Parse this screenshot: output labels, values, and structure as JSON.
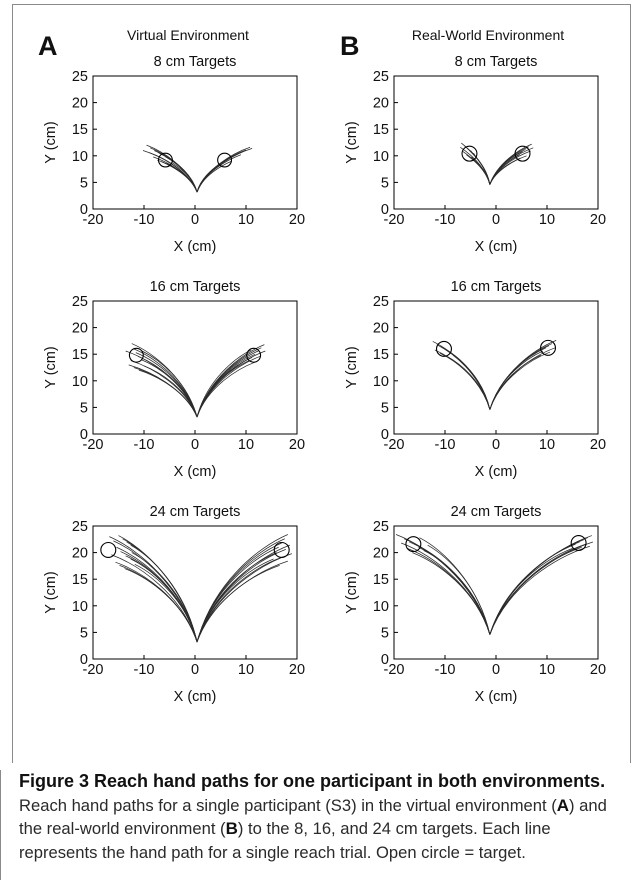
{
  "columns": [
    {
      "letter": "A",
      "title": "Virtual Environment"
    },
    {
      "letter": "B",
      "title": "Real-World Environment"
    }
  ],
  "caption": {
    "title": "Figure 3 Reach hand paths for one participant in both environments.",
    "body_parts": [
      "Reach hand paths for a single participant (S3) in the virtual environment (",
      "A",
      ") and the real-world environment (",
      "B",
      ") to the 8, 16, and 24 cm targets. Each line represents the hand path for a single reach trial. Open circle = target."
    ]
  },
  "colors": {
    "path": "#2b2b2b",
    "axis": "#000000",
    "text": "#111111",
    "frame": "#8a8a8a"
  },
  "chart_data": [
    {
      "type": "line",
      "panel": "A",
      "environment": "Virtual Environment",
      "title": "8 cm Targets",
      "xlabel": "X (cm)",
      "ylabel": "Y (cm)",
      "xlim": [
        -20,
        20
      ],
      "ylim": [
        0,
        25
      ],
      "xticks": [
        -20,
        -10,
        0,
        10,
        20
      ],
      "yticks": [
        0,
        5,
        10,
        15,
        20,
        25
      ],
      "grid": false,
      "start": [
        0.4,
        3.2
      ],
      "targets": [
        {
          "x": -5.8,
          "y": 9.2,
          "r": 1.3
        },
        {
          "x": 5.8,
          "y": 9.2,
          "r": 1.3
        }
      ],
      "left_endpoints": [
        [
          -9.5,
          12.0
        ],
        [
          -8.8,
          11.5
        ],
        [
          -8.0,
          11.0
        ],
        [
          -7.2,
          10.6
        ],
        [
          -6.4,
          10.2
        ],
        [
          -5.8,
          9.8
        ],
        [
          -5.0,
          9.5
        ],
        [
          -9.0,
          10.6
        ],
        [
          -8.2,
          9.8
        ],
        [
          -7.4,
          9.2
        ],
        [
          -6.6,
          8.9
        ],
        [
          -5.6,
          8.6
        ],
        [
          -10.2,
          11.0
        ],
        [
          -4.6,
          8.8
        ]
      ],
      "right_endpoints": [
        [
          10.8,
          11.6
        ],
        [
          10.0,
          11.1
        ],
        [
          9.2,
          10.7
        ],
        [
          8.4,
          10.3
        ],
        [
          7.6,
          10.0
        ],
        [
          6.8,
          9.6
        ],
        [
          6.2,
          9.2
        ],
        [
          5.5,
          8.8
        ],
        [
          4.8,
          8.5
        ],
        [
          7.2,
          9.0
        ],
        [
          9.0,
          10.2
        ],
        [
          11.2,
          11.4
        ]
      ]
    },
    {
      "type": "line",
      "panel": "B",
      "environment": "Real-World Environment",
      "title": "8 cm Targets",
      "xlabel": "X (cm)",
      "ylabel": "Y (cm)",
      "xlim": [
        -20,
        20
      ],
      "ylim": [
        0,
        25
      ],
      "xticks": [
        -20,
        -10,
        0,
        10,
        20
      ],
      "yticks": [
        0,
        5,
        10,
        15,
        20,
        25
      ],
      "grid": false,
      "start": [
        -1.2,
        4.6
      ],
      "targets": [
        {
          "x": -5.2,
          "y": 10.4,
          "r": 1.4
        },
        {
          "x": 5.2,
          "y": 10.4,
          "r": 1.4
        }
      ],
      "left_endpoints": [
        [
          -6.8,
          12.4
        ],
        [
          -6.2,
          11.9
        ],
        [
          -5.6,
          11.4
        ],
        [
          -5.0,
          11.0
        ],
        [
          -4.4,
          10.5
        ],
        [
          -6.5,
          10.8
        ],
        [
          -5.8,
          10.2
        ],
        [
          -4.8,
          9.8
        ],
        [
          -7.0,
          11.6
        ]
      ],
      "right_endpoints": [
        [
          7.0,
          12.2
        ],
        [
          6.4,
          11.7
        ],
        [
          5.8,
          11.2
        ],
        [
          5.2,
          10.8
        ],
        [
          4.6,
          10.2
        ],
        [
          6.8,
          10.9
        ],
        [
          6.0,
          10.0
        ],
        [
          4.8,
          9.6
        ],
        [
          7.3,
          11.5
        ]
      ]
    },
    {
      "type": "line",
      "panel": "A",
      "environment": "Virtual Environment",
      "title": "16 cm Targets",
      "xlabel": "X (cm)",
      "ylabel": "Y (cm)",
      "xlim": [
        -20,
        20
      ],
      "ylim": [
        0,
        25
      ],
      "xticks": [
        -20,
        -10,
        0,
        10,
        20
      ],
      "yticks": [
        0,
        5,
        10,
        15,
        20,
        25
      ],
      "grid": false,
      "start": [
        0.4,
        3.2
      ],
      "targets": [
        {
          "x": -11.5,
          "y": 14.8,
          "r": 1.3
        },
        {
          "x": 11.5,
          "y": 14.8,
          "r": 1.3
        }
      ],
      "left_endpoints": [
        [
          -12.4,
          17.0
        ],
        [
          -12.0,
          16.0
        ],
        [
          -11.6,
          15.3
        ],
        [
          -11.2,
          14.6
        ],
        [
          -10.6,
          14.0
        ],
        [
          -12.6,
          13.8
        ],
        [
          -13.0,
          13.0
        ],
        [
          -12.0,
          12.5
        ],
        [
          -11.0,
          12.0
        ],
        [
          -10.0,
          12.8
        ],
        [
          -13.6,
          15.6
        ],
        [
          -10.4,
          15.6
        ]
      ],
      "right_endpoints": [
        [
          13.6,
          16.8
        ],
        [
          13.0,
          16.2
        ],
        [
          12.4,
          15.6
        ],
        [
          11.8,
          15.0
        ],
        [
          11.2,
          14.4
        ],
        [
          10.6,
          13.8
        ],
        [
          12.0,
          13.6
        ],
        [
          12.8,
          14.6
        ],
        [
          13.8,
          15.6
        ],
        [
          11.0,
          15.8
        ]
      ]
    },
    {
      "type": "line",
      "panel": "B",
      "environment": "Real-World Environment",
      "title": "16 cm Targets",
      "xlabel": "X (cm)",
      "ylabel": "Y (cm)",
      "xlim": [
        -20,
        20
      ],
      "ylim": [
        0,
        25
      ],
      "xticks": [
        -20,
        -10,
        0,
        10,
        20
      ],
      "yticks": [
        0,
        5,
        10,
        15,
        20,
        25
      ],
      "grid": false,
      "start": [
        -1.2,
        4.6
      ],
      "targets": [
        {
          "x": -10.2,
          "y": 16.0,
          "r": 1.4
        },
        {
          "x": 10.2,
          "y": 16.2,
          "r": 1.4
        }
      ],
      "left_endpoints": [
        [
          -12.4,
          17.4
        ],
        [
          -11.6,
          16.8
        ],
        [
          -10.8,
          16.4
        ],
        [
          -10.0,
          16.0
        ],
        [
          -9.2,
          15.5
        ],
        [
          -11.0,
          15.2
        ],
        [
          -12.0,
          15.8
        ],
        [
          -9.6,
          14.6
        ],
        [
          -8.4,
          14.8
        ]
      ],
      "right_endpoints": [
        [
          11.8,
          17.6
        ],
        [
          11.0,
          17.0
        ],
        [
          10.4,
          16.6
        ],
        [
          9.8,
          16.2
        ],
        [
          9.2,
          15.6
        ],
        [
          10.6,
          15.4
        ],
        [
          11.6,
          16.2
        ],
        [
          8.8,
          14.8
        ]
      ]
    },
    {
      "type": "line",
      "panel": "A",
      "environment": "Virtual Environment",
      "title": "24 cm Targets",
      "xlabel": "X (cm)",
      "ylabel": "Y (cm)",
      "xlim": [
        -20,
        20
      ],
      "ylim": [
        0,
        25
      ],
      "xticks": [
        -20,
        -10,
        0,
        10,
        20
      ],
      "yticks": [
        0,
        5,
        10,
        15,
        20,
        25
      ],
      "grid": false,
      "start": [
        0.4,
        3.2
      ],
      "targets": [
        {
          "x": -17.0,
          "y": 20.5,
          "r": 1.4
        },
        {
          "x": 17.0,
          "y": 20.5,
          "r": 1.4
        }
      ],
      "left_endpoints": [
        [
          -15.0,
          23.2
        ],
        [
          -14.2,
          22.6
        ],
        [
          -13.4,
          22.0
        ],
        [
          -12.6,
          21.4
        ],
        [
          -16.0,
          22.2
        ],
        [
          -15.4,
          21.0
        ],
        [
          -14.6,
          20.2
        ],
        [
          -13.6,
          19.4
        ],
        [
          -12.6,
          18.8
        ],
        [
          -16.4,
          19.6
        ],
        [
          -15.6,
          18.2
        ],
        [
          -14.8,
          17.6
        ],
        [
          -13.8,
          17.0
        ],
        [
          -12.4,
          20.0
        ],
        [
          -11.8,
          17.8
        ],
        [
          -16.8,
          23.0
        ]
      ],
      "right_endpoints": [
        [
          18.2,
          23.4
        ],
        [
          17.6,
          22.6
        ],
        [
          17.0,
          21.8
        ],
        [
          16.4,
          21.0
        ],
        [
          17.8,
          20.6
        ],
        [
          18.6,
          21.4
        ],
        [
          16.0,
          20.0
        ],
        [
          17.2,
          19.2
        ],
        [
          18.2,
          18.4
        ],
        [
          16.6,
          17.6
        ],
        [
          15.4,
          18.8
        ],
        [
          19.0,
          19.8
        ]
      ]
    },
    {
      "type": "line",
      "panel": "B",
      "environment": "Real-World Environment",
      "title": "24 cm Targets",
      "xlabel": "X (cm)",
      "ylabel": "Y (cm)",
      "xlim": [
        -20,
        20
      ],
      "ylim": [
        0,
        25
      ],
      "xticks": [
        -20,
        -10,
        0,
        10,
        20
      ],
      "yticks": [
        0,
        5,
        10,
        15,
        20,
        25
      ],
      "grid": false,
      "start": [
        -1.2,
        4.6
      ],
      "targets": [
        {
          "x": -16.2,
          "y": 21.6,
          "r": 1.4
        },
        {
          "x": 16.2,
          "y": 21.8,
          "r": 1.4
        }
      ],
      "left_endpoints": [
        [
          -19.6,
          23.4
        ],
        [
          -18.0,
          22.6
        ],
        [
          -17.0,
          22.0
        ],
        [
          -16.0,
          21.6
        ],
        [
          -15.2,
          21.0
        ],
        [
          -14.2,
          20.4
        ],
        [
          -17.4,
          20.8
        ],
        [
          -16.4,
          20.0
        ],
        [
          -18.6,
          21.8
        ],
        [
          -15.0,
          22.8
        ],
        [
          -13.4,
          21.4
        ]
      ],
      "right_endpoints": [
        [
          18.8,
          23.2
        ],
        [
          18.0,
          22.8
        ],
        [
          17.2,
          22.4
        ],
        [
          16.4,
          22.0
        ],
        [
          15.6,
          21.6
        ],
        [
          16.8,
          21.0
        ],
        [
          17.6,
          21.6
        ],
        [
          15.0,
          20.8
        ],
        [
          18.4,
          21.2
        ],
        [
          19.0,
          22.0
        ]
      ]
    }
  ]
}
